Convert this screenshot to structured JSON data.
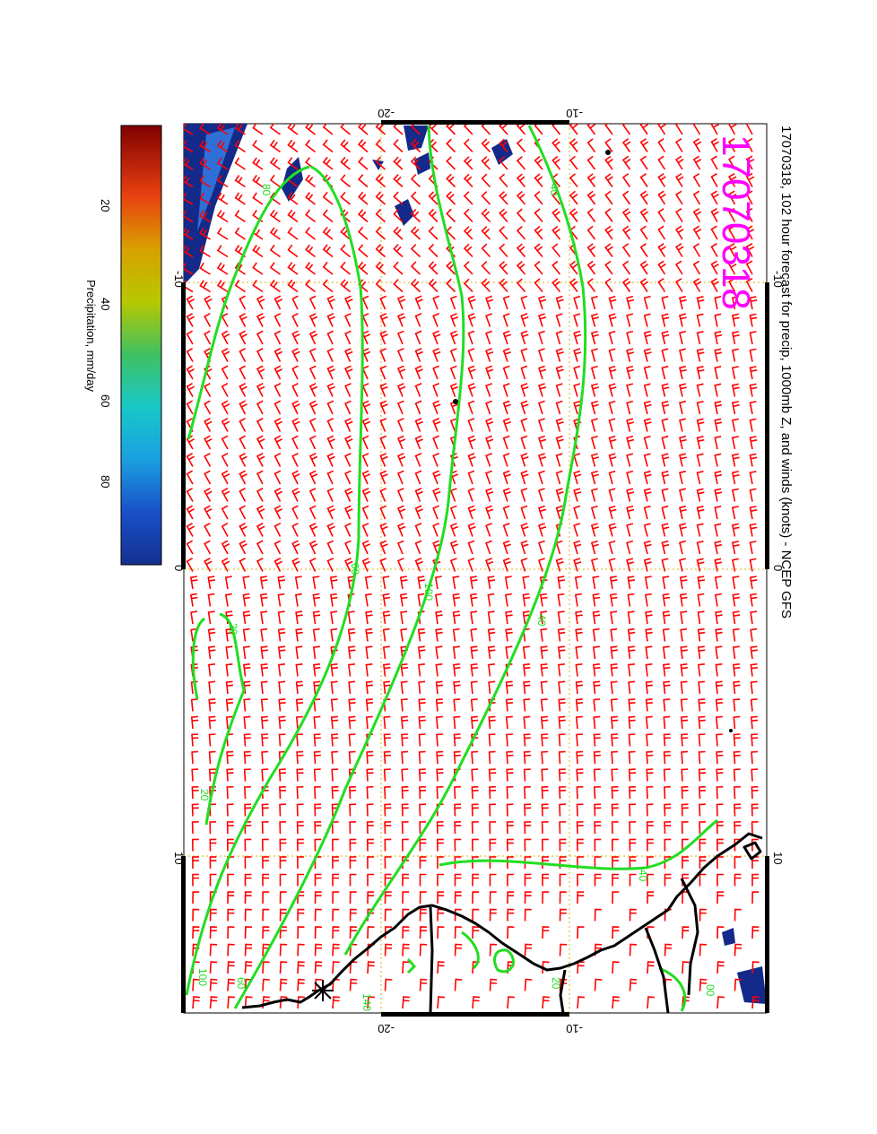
{
  "title": "17070318, 102 hour forecast for precip, 1000mb Z, and winds (knots) - NCEP GFS",
  "date_stamp": "17070318",
  "colorbar": {
    "label": "Precipitation, mm/day",
    "ticks": [
      "20",
      "40",
      "60",
      "80"
    ]
  },
  "axes": {
    "lat_ticks_top": [
      "-20",
      "-10"
    ],
    "lat_ticks_bottom": [
      "-20",
      "-10"
    ],
    "lon_ticks_left": [
      "-10",
      "0",
      "10"
    ],
    "lon_ticks_right": [
      "-10",
      "0",
      "10"
    ]
  },
  "contour_labels": [
    "80",
    "40",
    "40",
    "100",
    "60",
    "40",
    "20",
    "20",
    "100",
    "60",
    "40",
    "20",
    "00",
    "00",
    "140"
  ],
  "colors": {
    "wind_barbs": "#ff0000",
    "contours": "#22dd22",
    "coastline": "#000000",
    "date_stamp": "#ff00ff",
    "precip_dark": "#142a8a",
    "grid": "#d9b300"
  }
}
